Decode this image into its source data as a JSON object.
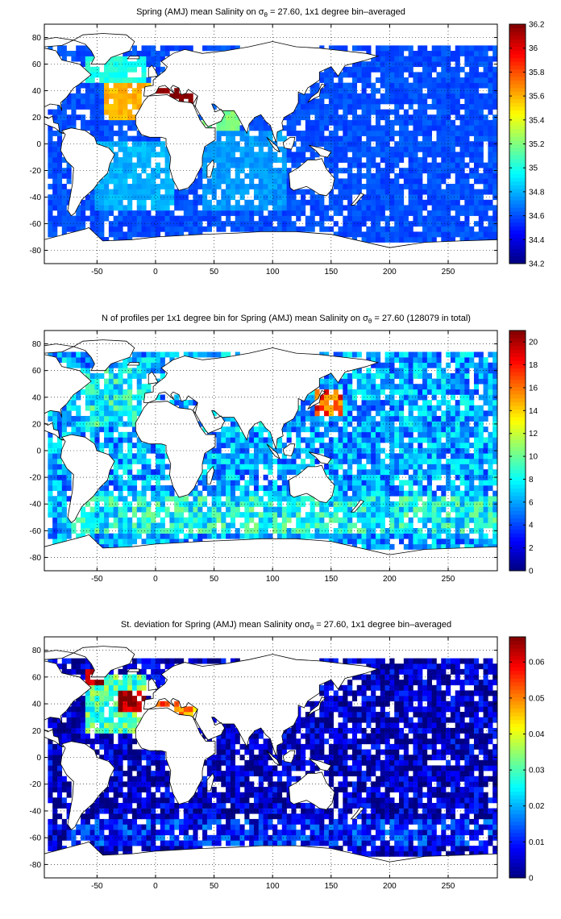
{
  "figure": {
    "colormap": "jet",
    "land_color": "#ffffff",
    "coast_color": "#000000"
  },
  "chart_data": [
    {
      "type": "heatmap",
      "title_pre": "Spring (AMJ) mean Salinity on σ",
      "title_sub": "θ",
      "title_post": " = 27.60, 1x1 degree bin–averaged",
      "xlim": [
        -95,
        292
      ],
      "ylim": [
        -90,
        90
      ],
      "xticks": [
        -50,
        0,
        50,
        100,
        150,
        200,
        250
      ],
      "yticks": [
        80,
        60,
        40,
        20,
        0,
        -20,
        -40,
        -60,
        -80
      ],
      "grid": true,
      "colorbar": {
        "range": [
          34.2,
          36.2
        ],
        "ticks": [
          34.2,
          34.4,
          34.6,
          34.8,
          35,
          35.2,
          35.4,
          35.6,
          35.8,
          36,
          36.2
        ]
      },
      "variable": "salinity",
      "data_regions": [
        {
          "region": "subpolar North Atlantic",
          "lon": [
            -60,
            -10
          ],
          "lat": [
            45,
            65
          ],
          "value": 35.0
        },
        {
          "region": "subtropical North Atlantic",
          "lon": [
            -45,
            -5
          ],
          "lat": [
            20,
            45
          ],
          "value": 35.6
        },
        {
          "region": "Mediterranean outflow",
          "lon": [
            -20,
            -5
          ],
          "lat": [
            30,
            42
          ],
          "value": 36.0
        },
        {
          "region": "Mediterranean Sea",
          "lon": [
            0,
            35
          ],
          "lat": [
            32,
            42
          ],
          "value": 36.2
        },
        {
          "region": "Red Sea / Arabian Sea",
          "lon": [
            40,
            70
          ],
          "lat": [
            10,
            25
          ],
          "value": 35.2
        },
        {
          "region": "South Atlantic",
          "lon": [
            -50,
            15
          ],
          "lat": [
            -50,
            0
          ],
          "value": 34.8
        },
        {
          "region": "Indian Ocean",
          "lon": [
            40,
            110
          ],
          "lat": [
            -50,
            10
          ],
          "value": 34.75
        },
        {
          "region": "Pacific Ocean",
          "lon": [
            120,
            290
          ],
          "lat": [
            -55,
            60
          ],
          "value": 34.6
        },
        {
          "region": "Southern Ocean",
          "lon": [
            -90,
            290
          ],
          "lat": [
            -70,
            -50
          ],
          "value": 34.6
        }
      ]
    },
    {
      "type": "heatmap",
      "title_pre": "N of profiles per 1x1 degree bin for Spring (AMJ) mean Salinity on σ",
      "title_sub": "θ",
      "title_post": " = 27.60 (128079 in total)",
      "xlim": [
        -95,
        292
      ],
      "ylim": [
        -90,
        90
      ],
      "xticks": [
        -50,
        0,
        50,
        100,
        150,
        200,
        250
      ],
      "yticks": [
        80,
        60,
        40,
        20,
        0,
        -20,
        -40,
        -60,
        -80
      ],
      "grid": true,
      "colorbar": {
        "range": [
          0,
          21
        ],
        "ticks": [
          0,
          2,
          4,
          6,
          8,
          10,
          12,
          14,
          16,
          18,
          20
        ]
      },
      "variable": "profile count",
      "total_profiles": 128079,
      "data_regions": [
        {
          "region": "Kuroshio extension",
          "lon": [
            135,
            160
          ],
          "lat": [
            25,
            45
          ],
          "value": 17
        },
        {
          "region": "North Atlantic",
          "lon": [
            -60,
            -10
          ],
          "lat": [
            20,
            60
          ],
          "value": 8
        },
        {
          "region": "Southern Ocean belt",
          "lon": [
            -70,
            290
          ],
          "lat": [
            -60,
            -35
          ],
          "value": 8
        },
        {
          "region": "Pacific interior",
          "lon": [
            150,
            290
          ],
          "lat": [
            -30,
            50
          ],
          "value": 6
        }
      ]
    },
    {
      "type": "heatmap",
      "title_pre": "St. deviation for Spring (AMJ) mean Salinity on",
      "title_sub_prefix": "σ",
      "title_sub": "θ",
      "title_post": " = 27.60, 1x1 degree bin–averaged",
      "xlim": [
        -95,
        292
      ],
      "ylim": [
        -90,
        90
      ],
      "xticks": [
        -50,
        0,
        50,
        100,
        150,
        200,
        250
      ],
      "yticks": [
        80,
        60,
        40,
        20,
        0,
        -20,
        -40,
        -60,
        -80
      ],
      "grid": true,
      "colorbar": {
        "range": [
          0,
          0.067
        ],
        "ticks": [
          0,
          0.01,
          0.02,
          0.03,
          0.04,
          0.05,
          0.06
        ]
      },
      "variable": "salinity standard deviation",
      "data_regions": [
        {
          "region": "Mediterranean outflow",
          "lon": [
            -30,
            -10
          ],
          "lat": [
            35,
            50
          ],
          "value": 0.067
        },
        {
          "region": "Labrador Sea",
          "lon": [
            -60,
            -45
          ],
          "lat": [
            55,
            65
          ],
          "value": 0.06
        },
        {
          "region": "North Atlantic",
          "lon": [
            -60,
            -10
          ],
          "lat": [
            20,
            60
          ],
          "value": 0.03
        },
        {
          "region": "Mediterranean Sea",
          "lon": [
            0,
            35
          ],
          "lat": [
            32,
            42
          ],
          "value": 0.05
        },
        {
          "region": "Southern Ocean",
          "lon": [
            -70,
            290
          ],
          "lat": [
            -65,
            -45
          ],
          "value": 0.01
        },
        {
          "region": "Pacific interior",
          "lon": [
            130,
            290
          ],
          "lat": [
            -40,
            60
          ],
          "value": 0.004
        }
      ]
    }
  ]
}
